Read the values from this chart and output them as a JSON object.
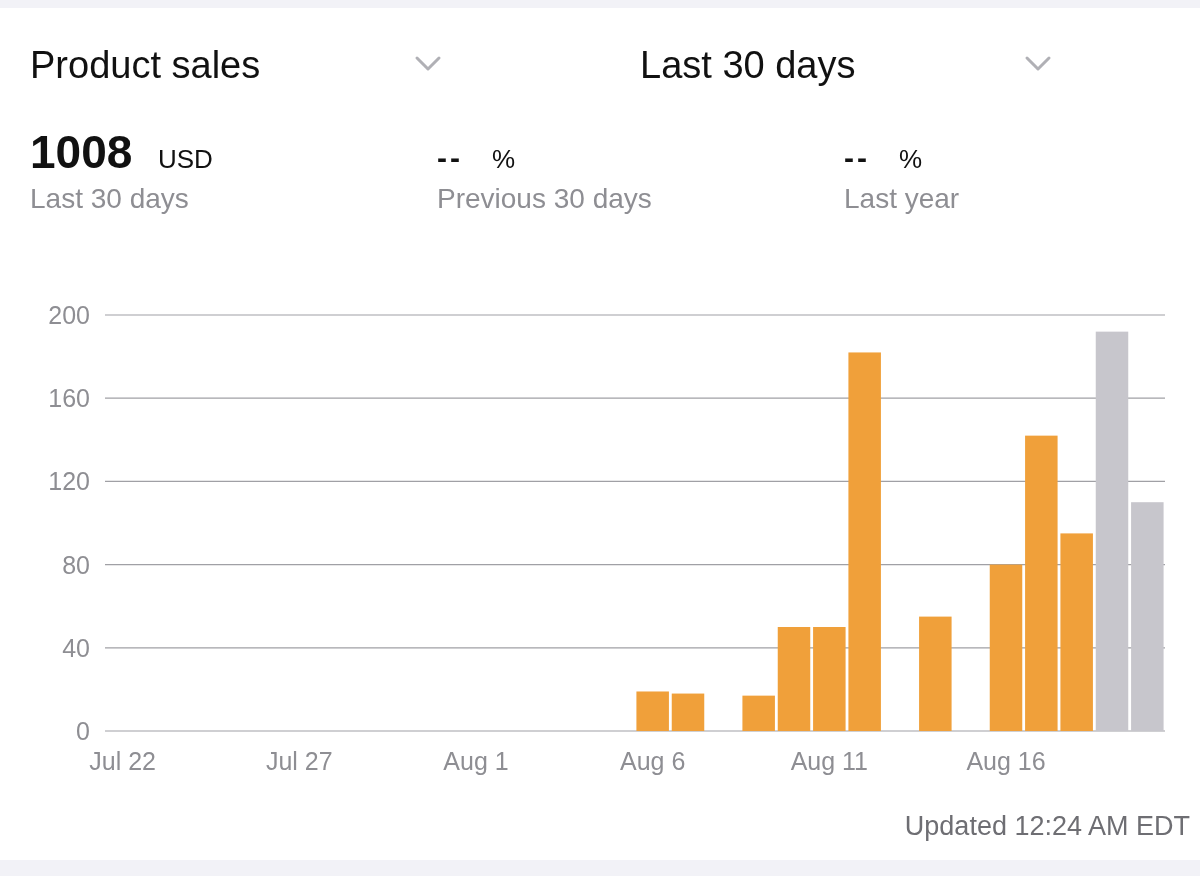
{
  "chart_data": {
    "type": "bar",
    "title": "Product sales",
    "annotations": [
      "Last 30 days",
      "1008",
      "USD",
      "Last 30 days",
      "--",
      "%",
      "Previous 30 days",
      "--",
      "%",
      "Last year",
      "Updated 12:24 AM EDT"
    ],
    "categories": [
      "Jul 22",
      null,
      null,
      null,
      null,
      "Jul 27",
      null,
      null,
      null,
      null,
      "Aug 1",
      null,
      null,
      null,
      null,
      "Aug 6",
      null,
      null,
      null,
      null,
      "Aug 11",
      null,
      null,
      null,
      null,
      "Aug 16",
      null,
      null,
      null,
      null
    ],
    "values": [
      null,
      null,
      null,
      null,
      null,
      null,
      null,
      null,
      null,
      null,
      null,
      null,
      null,
      null,
      null,
      19,
      18,
      null,
      17,
      50,
      50,
      182,
      null,
      55,
      null,
      80,
      142,
      95,
      192,
      110
    ],
    "colors": [
      null,
      null,
      null,
      null,
      null,
      null,
      null,
      null,
      null,
      null,
      null,
      null,
      null,
      null,
      null,
      "#f0a03a",
      "#f0a03a",
      null,
      "#f0a03a",
      "#f0a03a",
      "#f0a03a",
      "#f0a03a",
      null,
      "#f0a03a",
      null,
      "#f0a03a",
      "#f0a03a",
      "#f0a03a",
      "#c7c6cc",
      "#c7c6cc"
    ],
    "ylim": [
      0,
      200
    ],
    "yticks": [
      0,
      40,
      80,
      120,
      160,
      200
    ],
    "grid": "y"
  }
}
